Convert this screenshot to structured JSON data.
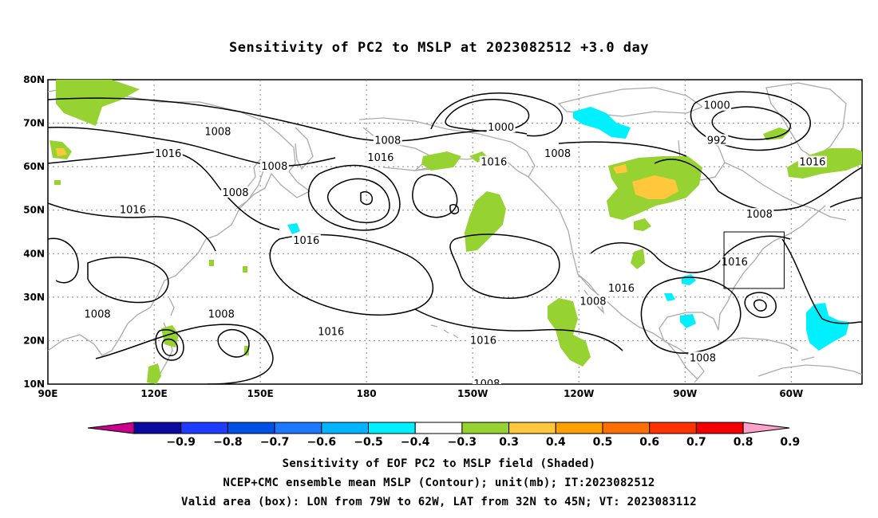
{
  "title": "Sensitivity of PC2 to MSLP at 2023082512 +3.0 day",
  "map": {
    "lon_labels": [
      "90E",
      "120E",
      "150E",
      "180",
      "150W",
      "120W",
      "90W",
      "60W"
    ],
    "lat_labels": [
      "80N",
      "70N",
      "60N",
      "50N",
      "40N",
      "30N",
      "20N",
      "10N"
    ],
    "contour_labels": [
      {
        "text": "1008",
        "lon": 138,
        "lat": 68
      },
      {
        "text": "1016",
        "lon": 124,
        "lat": 63
      },
      {
        "text": "1008",
        "lon": 154,
        "lat": 60
      },
      {
        "text": "1016",
        "lon": 114,
        "lat": 50
      },
      {
        "text": "1008",
        "lon": 143,
        "lat": 54
      },
      {
        "text": "1016",
        "lon": 163,
        "lat": 43
      },
      {
        "text": "1008",
        "lon": 104,
        "lat": 26
      },
      {
        "text": "1008",
        "lon": 139,
        "lat": 26
      },
      {
        "text": "1016",
        "lon": 170,
        "lat": 22
      },
      {
        "text": "1008",
        "lon": 186,
        "lat": 66
      },
      {
        "text": "1016",
        "lon": 184,
        "lat": 62
      },
      {
        "text": "1000",
        "lon": 218,
        "lat": 69
      },
      {
        "text": "1016",
        "lon": 216,
        "lat": 61
      },
      {
        "text": "1008",
        "lon": 234,
        "lat": 63
      },
      {
        "text": "1016",
        "lon": 213,
        "lat": 20
      },
      {
        "text": "1008",
        "lon": 214,
        "lat": 10
      },
      {
        "text": "1016",
        "lon": 252,
        "lat": 32
      },
      {
        "text": "1008",
        "lon": 244,
        "lat": 29
      },
      {
        "text": "1000",
        "lon": 279,
        "lat": 74
      },
      {
        "text": "992",
        "lon": 279,
        "lat": 66
      },
      {
        "text": "1016",
        "lon": 306,
        "lat": 61
      },
      {
        "text": "1008",
        "lon": 291,
        "lat": 49
      },
      {
        "text": "1016",
        "lon": 284,
        "lat": 38
      },
      {
        "text": "1008",
        "lon": 275,
        "lat": 16
      }
    ]
  },
  "valid_box": {
    "lon_min": -79,
    "lon_max": -62,
    "lat_min": 32,
    "lat_max": 45
  },
  "colorbar": {
    "labels": [
      "−0.9",
      "−0.8",
      "−0.7",
      "−0.6",
      "−0.5",
      "−0.4",
      "−0.3",
      "0.3",
      "0.4",
      "0.5",
      "0.6",
      "0.7",
      "0.8",
      "0.9"
    ],
    "colors": [
      "#0a0aa0",
      "#1e3cff",
      "#0050e6",
      "#1e78ff",
      "#00b4ff",
      "#00f0ff",
      "#ffffff",
      "#96d232",
      "#ffc83c",
      "#ffa000",
      "#ff6e00",
      "#ff3200",
      "#f00000"
    ],
    "low_color": "#c8008c",
    "high_color": "#ffa0c8"
  },
  "captions": [
    "Sensitivity of EOF PC2 to MSLP field (Shaded)",
    "NCEP+CMC ensemble mean MSLP (Contour); unit(mb); IT:2023082512",
    "Valid area (box): LON from 79W to 62W, LAT from 32N to 45N; VT: 2023083112"
  ]
}
